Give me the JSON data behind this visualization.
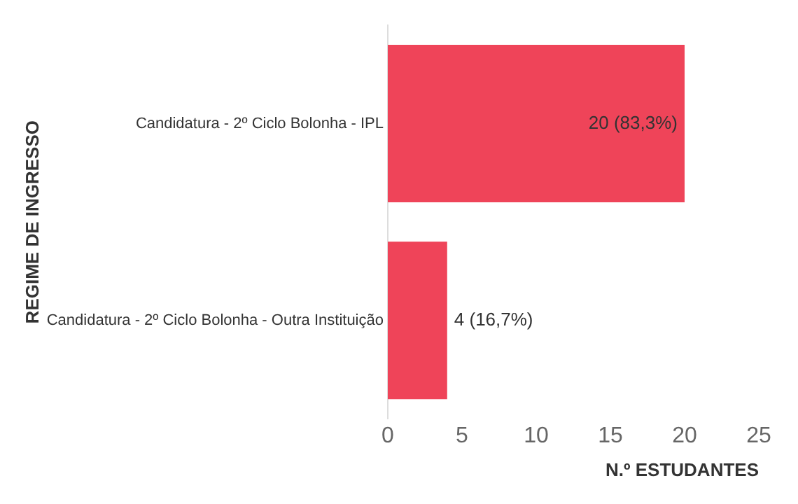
{
  "chart_data": {
    "type": "bar",
    "orientation": "horizontal",
    "categories": [
      "Candidatura - 2º Ciclo Bolonha - IPL",
      "Candidatura - 2º Ciclo Bolonha - Outra Instituição"
    ],
    "values": [
      20,
      4
    ],
    "color": "#ef4459",
    "value_labels": [
      "20 (83,3%)",
      "4 (16,7%)"
    ],
    "xlim": [
      0,
      25
    ],
    "xticks": [
      0,
      5,
      10,
      15,
      20,
      25
    ],
    "xlabel": "N.º ESTUDANTES",
    "ylabel": "REGIME DE INGRESSO",
    "grid": false,
    "legend": false
  }
}
